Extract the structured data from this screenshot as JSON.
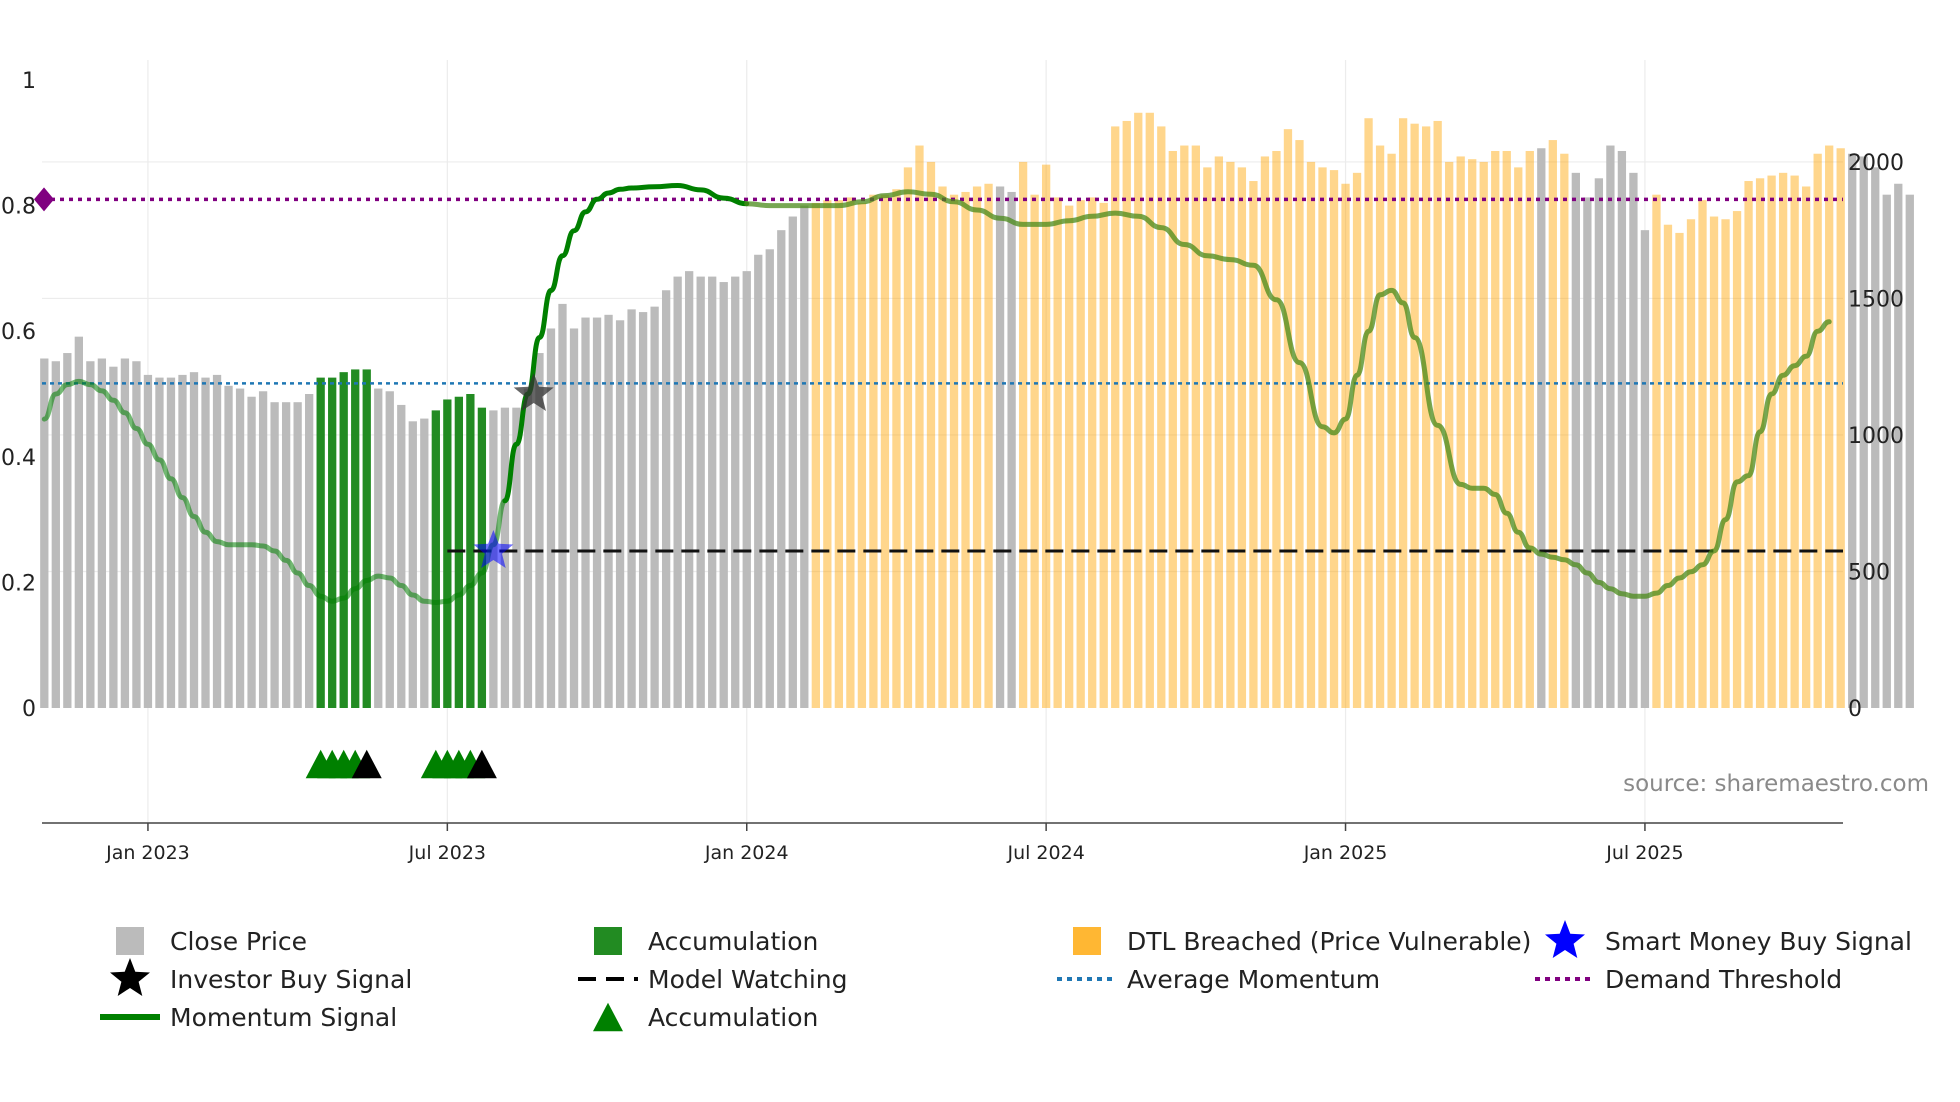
{
  "chart_data": {
    "type": "bar",
    "title": "",
    "source": "source: sharemaestro.com",
    "colors": {
      "close": "#bbbbbb",
      "accumulation": "#228b22",
      "dtl": "#ffa500",
      "momentum": "#008000",
      "avg": "#1f77b4",
      "threshold": "#800080",
      "smart": "#0000ff",
      "investor": "#000000",
      "triangle": "#008000"
    },
    "y_left": {
      "ticks": [
        0,
        0.2,
        0.4,
        0.6,
        0.8,
        1
      ],
      "tick_labels": [
        "0",
        "0.2",
        "0.4",
        "0.6",
        "0.8",
        "1"
      ],
      "range": [
        0,
        1
      ]
    },
    "y_right": {
      "ticks": [
        0,
        500,
        1000,
        1500,
        2000
      ],
      "tick_labels": [
        "0",
        "500",
        "1000",
        "1500",
        "2000"
      ],
      "range": [
        0,
        2300
      ]
    },
    "x_ticks": [
      {
        "week": 12,
        "label": "Jan 2023"
      },
      {
        "week": 38,
        "label": "Jul 2023"
      },
      {
        "week": 64,
        "label": "Jan 2024"
      },
      {
        "week": 90,
        "label": "Jul 2024"
      },
      {
        "week": 116,
        "label": "Jan 2025"
      },
      {
        "week": 142,
        "label": "Jul 2025"
      }
    ],
    "week_range": [
      2.8,
      159.2
    ],
    "prices": [
      1280,
      1270,
      1300,
      1360,
      1270,
      1280,
      1250,
      1280,
      1270,
      1220,
      1210,
      1210,
      1220,
      1230,
      1210,
      1220,
      1180,
      1170,
      1140,
      1160,
      1120,
      1120,
      1120,
      1150,
      1210,
      1210,
      1230,
      1240,
      1240,
      1170,
      1160,
      1110,
      1050,
      1060,
      1090,
      1130,
      1140,
      1150,
      1100,
      1090,
      1100,
      1100,
      1170,
      1300,
      1390,
      1480,
      1390,
      1430,
      1430,
      1440,
      1420,
      1460,
      1450,
      1470,
      1530,
      1580,
      1600,
      1580,
      1580,
      1560,
      1580,
      1600,
      1660,
      1680,
      1750,
      1800,
      1840,
      1850,
      1860,
      1860,
      1870,
      1850,
      1880,
      1880,
      1900,
      1980,
      2060,
      2000,
      1910,
      1880,
      1890,
      1910,
      1920,
      1910,
      1890,
      2000,
      1880,
      1990,
      1870,
      1840,
      1860,
      1870,
      1850,
      2130,
      2150,
      2180,
      2180,
      2130,
      2040,
      2060,
      2060,
      1980,
      2020,
      2000,
      1980,
      1930,
      2020,
      2040,
      2120,
      2080,
      2000,
      1980,
      1970,
      1920,
      1960,
      2160,
      2060,
      2030,
      2160,
      2140,
      2130,
      2150,
      2000,
      2020,
      2010,
      2000,
      2040,
      2040,
      1980,
      2040,
      2050,
      2080,
      2030,
      1960,
      1870,
      1940,
      2060,
      2040,
      1960,
      1750,
      1880,
      1770,
      1740,
      1790,
      1860,
      1800,
      1790,
      1820,
      1930,
      1940,
      1950,
      1960,
      1950,
      1910,
      2030,
      2060,
      2050,
      2030,
      2020,
      1980,
      1880,
      1920,
      1880
    ],
    "categories": {
      "accumulation": [
        [
          27,
          31
        ],
        [
          37,
          41
        ]
      ],
      "dtl": [
        [
          70,
          85
        ],
        [
          88,
          132
        ],
        [
          134,
          135
        ],
        [
          143,
          159
        ]
      ]
    },
    "momentum": [
      [
        3,
        0.46
      ],
      [
        4,
        0.5
      ],
      [
        5,
        0.515
      ],
      [
        6,
        0.52
      ],
      [
        7,
        0.515
      ],
      [
        8,
        0.505
      ],
      [
        9,
        0.49
      ],
      [
        10,
        0.47
      ],
      [
        11,
        0.445
      ],
      [
        12,
        0.42
      ],
      [
        13,
        0.395
      ],
      [
        14,
        0.365
      ],
      [
        15,
        0.335
      ],
      [
        16,
        0.305
      ],
      [
        17,
        0.28
      ],
      [
        18,
        0.265
      ],
      [
        19,
        0.26
      ],
      [
        20,
        0.26
      ],
      [
        21,
        0.26
      ],
      [
        22,
        0.258
      ],
      [
        23,
        0.25
      ],
      [
        24,
        0.235
      ],
      [
        25,
        0.215
      ],
      [
        26,
        0.195
      ],
      [
        27,
        0.178
      ],
      [
        28,
        0.17
      ],
      [
        29,
        0.175
      ],
      [
        30,
        0.19
      ],
      [
        31,
        0.203
      ],
      [
        32,
        0.21
      ],
      [
        33,
        0.207
      ],
      [
        34,
        0.195
      ],
      [
        35,
        0.18
      ],
      [
        36,
        0.17
      ],
      [
        37,
        0.168
      ],
      [
        38,
        0.17
      ],
      [
        39,
        0.18
      ],
      [
        40,
        0.195
      ],
      [
        41,
        0.215
      ],
      [
        42,
        0.26
      ],
      [
        43,
        0.33
      ],
      [
        44,
        0.42
      ],
      [
        45,
        0.5
      ],
      [
        46,
        0.59
      ],
      [
        47,
        0.665
      ],
      [
        48,
        0.72
      ],
      [
        49,
        0.76
      ],
      [
        50,
        0.79
      ],
      [
        51,
        0.81
      ],
      [
        52,
        0.82
      ],
      [
        53,
        0.826
      ],
      [
        54,
        0.828
      ],
      [
        56,
        0.83
      ],
      [
        58,
        0.832
      ],
      [
        60,
        0.825
      ],
      [
        62,
        0.812
      ],
      [
        64,
        0.803
      ],
      [
        66,
        0.8
      ],
      [
        68,
        0.8
      ],
      [
        70,
        0.8
      ],
      [
        72,
        0.8
      ],
      [
        74,
        0.806
      ],
      [
        76,
        0.816
      ],
      [
        78,
        0.822
      ],
      [
        80,
        0.818
      ],
      [
        82,
        0.806
      ],
      [
        84,
        0.793
      ],
      [
        86,
        0.78
      ],
      [
        88,
        0.77
      ],
      [
        90,
        0.77
      ],
      [
        92,
        0.776
      ],
      [
        94,
        0.783
      ],
      [
        96,
        0.788
      ],
      [
        98,
        0.783
      ],
      [
        100,
        0.765
      ],
      [
        102,
        0.738
      ],
      [
        104,
        0.72
      ],
      [
        106,
        0.714
      ],
      [
        108,
        0.705
      ],
      [
        110,
        0.65
      ],
      [
        112,
        0.55
      ],
      [
        114,
        0.448
      ],
      [
        115,
        0.438
      ],
      [
        116,
        0.46
      ],
      [
        117,
        0.53
      ],
      [
        118,
        0.6
      ],
      [
        119,
        0.658
      ],
      [
        120,
        0.665
      ],
      [
        121,
        0.645
      ],
      [
        122,
        0.59
      ],
      [
        124,
        0.45
      ],
      [
        126,
        0.356
      ],
      [
        127,
        0.35
      ],
      [
        128,
        0.35
      ],
      [
        129,
        0.34
      ],
      [
        130,
        0.31
      ],
      [
        131,
        0.28
      ],
      [
        132,
        0.255
      ],
      [
        133,
        0.245
      ],
      [
        134,
        0.24
      ],
      [
        135,
        0.236
      ],
      [
        136,
        0.228
      ],
      [
        137,
        0.215
      ],
      [
        138,
        0.2
      ],
      [
        139,
        0.19
      ],
      [
        140,
        0.182
      ],
      [
        141,
        0.178
      ],
      [
        142,
        0.178
      ],
      [
        143,
        0.183
      ],
      [
        144,
        0.195
      ],
      [
        145,
        0.207
      ],
      [
        146,
        0.217
      ],
      [
        147,
        0.228
      ],
      [
        148,
        0.25
      ],
      [
        149,
        0.3
      ],
      [
        150,
        0.36
      ],
      [
        151,
        0.37
      ],
      [
        152,
        0.44
      ],
      [
        153,
        0.5
      ],
      [
        154,
        0.53
      ],
      [
        155,
        0.545
      ],
      [
        156,
        0.56
      ],
      [
        157,
        0.6
      ],
      [
        158,
        0.615
      ]
    ],
    "average_momentum": 0.517,
    "demand_threshold": 0.81,
    "model_watching": {
      "value": 0.25,
      "from_week": 38,
      "to_week": 159
    },
    "smart_money_signal": {
      "week": 42,
      "value": 0.25
    },
    "investor_signal": {
      "week": 45.5,
      "value": 0.5
    },
    "accumulation_triangles": [
      27,
      28,
      29,
      30,
      37,
      38,
      39,
      40
    ],
    "investor_triangles": [
      31,
      41
    ],
    "legend": [
      {
        "label": "Close Price",
        "marker": "square",
        "color": "#bbbbbb"
      },
      {
        "label": "Accumulation",
        "marker": "square",
        "color": "#228b22"
      },
      {
        "label": "DTL Breached (Price Vulnerable)",
        "marker": "square",
        "color": "#ffa500"
      },
      {
        "label": "Smart Money Buy Signal",
        "marker": "star",
        "color": "#0000ff"
      },
      {
        "label": "Investor Buy Signal",
        "marker": "star",
        "color": "#000000"
      },
      {
        "label": "Model Watching",
        "marker": "dash",
        "color": "#000000"
      },
      {
        "label": "Average Momentum",
        "marker": "dot",
        "color": "#1f77b4"
      },
      {
        "label": "Demand Threshold",
        "marker": "dot",
        "color": "#800080"
      },
      {
        "label": "Momentum Signal",
        "marker": "line",
        "color": "#008000"
      },
      {
        "label": "Accumulation",
        "marker": "triangle",
        "color": "#008000"
      }
    ]
  }
}
